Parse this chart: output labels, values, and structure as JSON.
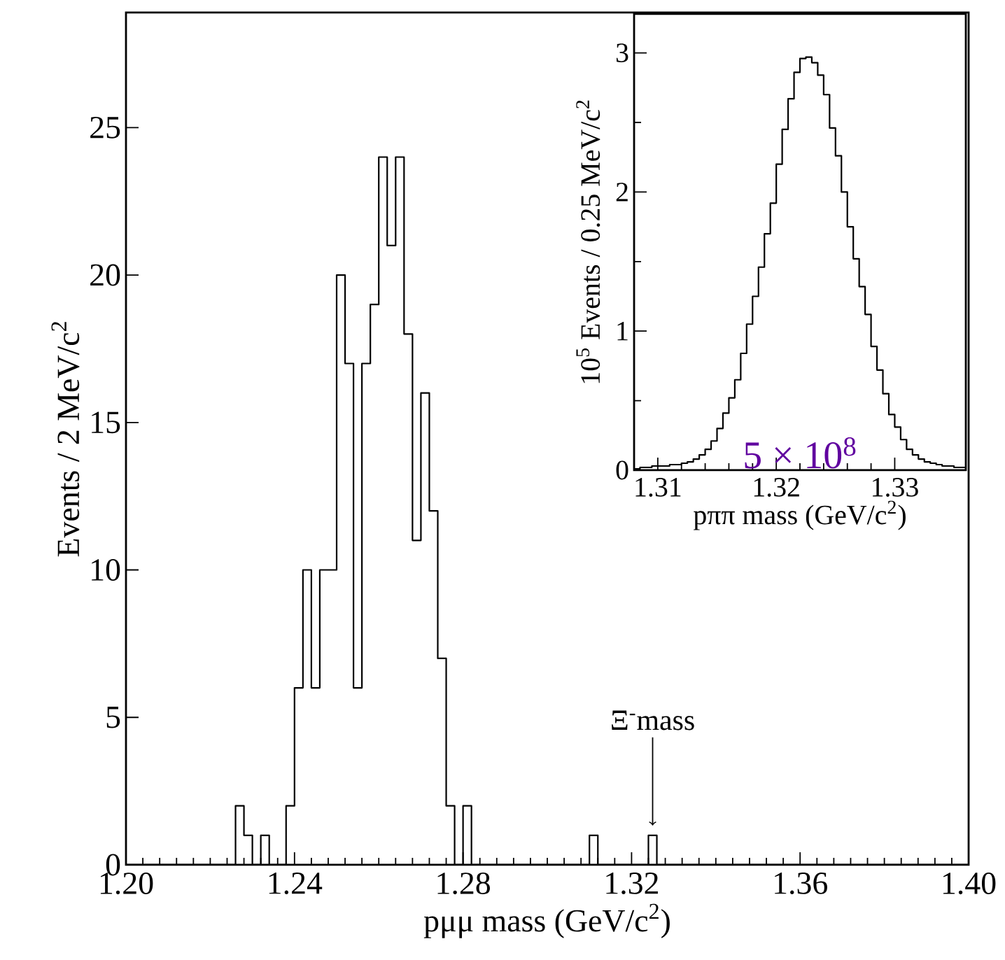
{
  "chart_data": [
    {
      "type": "histogram",
      "xlabel": "pμμ mass (GeV/c$^{2}$)",
      "ylabel": "Events / 2 MeV/c$^{2}$",
      "color": "#000000",
      "bins": [
        1.2,
        1.202,
        1.204,
        1.206,
        1.208,
        1.21,
        1.212,
        1.214,
        1.216,
        1.218,
        1.22,
        1.222,
        1.224,
        1.226,
        1.228,
        1.23,
        1.232,
        1.234,
        1.236,
        1.238,
        1.24,
        1.242,
        1.244,
        1.246,
        1.248,
        1.25,
        1.252,
        1.254,
        1.256,
        1.258,
        1.26,
        1.262,
        1.264,
        1.266,
        1.268,
        1.27,
        1.272,
        1.274,
        1.276,
        1.278,
        1.28,
        1.282,
        1.284,
        1.286,
        1.288,
        1.29,
        1.292,
        1.294,
        1.296,
        1.298,
        1.3,
        1.302,
        1.304,
        1.306,
        1.308,
        1.31,
        1.312,
        1.314,
        1.316,
        1.318,
        1.32,
        1.322,
        1.324,
        1.326,
        1.328,
        1.33,
        1.332,
        1.334,
        1.336,
        1.338,
        1.34,
        1.342,
        1.344,
        1.346,
        1.348,
        1.35,
        1.352,
        1.354,
        1.356,
        1.358,
        1.36,
        1.362,
        1.364,
        1.366,
        1.368,
        1.37,
        1.372,
        1.374,
        1.376,
        1.378,
        1.38,
        1.382,
        1.384,
        1.386,
        1.388,
        1.39,
        1.392,
        1.394,
        1.396,
        1.398,
        1.4
      ],
      "values": [
        0,
        0,
        0,
        0,
        0,
        0,
        0,
        0,
        0,
        0,
        0,
        0,
        0,
        2,
        1,
        0,
        1,
        0,
        0,
        2,
        6,
        10,
        6,
        10,
        10,
        20,
        17,
        6,
        17,
        19,
        24,
        21,
        24,
        18,
        11,
        16,
        12,
        7,
        2,
        0,
        2,
        0,
        0,
        0,
        0,
        0,
        0,
        0,
        0,
        0,
        0,
        0,
        0,
        0,
        0,
        1,
        0,
        0,
        0,
        0,
        0,
        0,
        1,
        0,
        0,
        0,
        0,
        0,
        0,
        0,
        0,
        0,
        0,
        0,
        0,
        0,
        0,
        0,
        0,
        0,
        0,
        0,
        0,
        0,
        0,
        0,
        0,
        0,
        0,
        0,
        0,
        0,
        0,
        0,
        0,
        0,
        0,
        0,
        0,
        0
      ],
      "xlim": [
        1.2,
        1.4
      ],
      "ylim": [
        0,
        28.9
      ],
      "xticks": [
        {
          "value": 1.2,
          "label": "1.20"
        },
        {
          "value": 1.24,
          "label": "1.24"
        },
        {
          "value": 1.28,
          "label": "1.28"
        },
        {
          "value": 1.32,
          "label": "1.32"
        },
        {
          "value": 1.36,
          "label": "1.36"
        },
        {
          "value": 1.4,
          "label": "1.40"
        }
      ],
      "yticks": [
        0,
        5,
        10,
        15,
        20,
        25
      ],
      "annotations": [
        {
          "text": "Ξ$^{-}$mass",
          "x": 1.325,
          "y": 1
        }
      ]
    },
    {
      "type": "histogram",
      "xlabel": "pππ mass (GeV/c$^{2}$)",
      "ylabel": "10$^{5}$ Events / 0.25 MeV/c$^{2}$",
      "color": "#000000",
      "bins": [
        1.308,
        1.3085,
        1.309,
        1.3095,
        1.31,
        1.3105,
        1.311,
        1.3115,
        1.312,
        1.3125,
        1.313,
        1.3135,
        1.314,
        1.3145,
        1.315,
        1.3155,
        1.316,
        1.3165,
        1.317,
        1.3175,
        1.318,
        1.3185,
        1.319,
        1.3195,
        1.32,
        1.3205,
        1.321,
        1.3215,
        1.322,
        1.3225,
        1.323,
        1.3235,
        1.324,
        1.3245,
        1.325,
        1.3255,
        1.326,
        1.3265,
        1.327,
        1.3275,
        1.328,
        1.3285,
        1.329,
        1.3295,
        1.33,
        1.3305,
        1.331,
        1.3315,
        1.332,
        1.3325,
        1.333,
        1.3335,
        1.334,
        1.3345,
        1.335,
        1.3355,
        1.336
      ],
      "values": [
        0.01,
        0.02,
        0.02,
        0.03,
        0.03,
        0.03,
        0.04,
        0.04,
        0.05,
        0.06,
        0.08,
        0.11,
        0.15,
        0.21,
        0.3,
        0.41,
        0.52,
        0.65,
        0.84,
        1.05,
        1.25,
        1.46,
        1.7,
        1.92,
        2.2,
        2.45,
        2.67,
        2.86,
        2.96,
        2.97,
        2.93,
        2.84,
        2.7,
        2.46,
        2.26,
        2.0,
        1.75,
        1.52,
        1.32,
        1.12,
        0.89,
        0.72,
        0.55,
        0.4,
        0.31,
        0.22,
        0.15,
        0.11,
        0.08,
        0.06,
        0.05,
        0.04,
        0.03,
        0.03,
        0.02,
        0.02
      ],
      "xlim": [
        1.308,
        1.336
      ],
      "ylim": [
        0,
        3.28
      ],
      "xticks": [
        1.31,
        1.32,
        1.33
      ],
      "yticks": [
        0,
        1,
        2,
        3
      ],
      "annotations": [
        "5 × 10$^{8}$"
      ]
    }
  ]
}
